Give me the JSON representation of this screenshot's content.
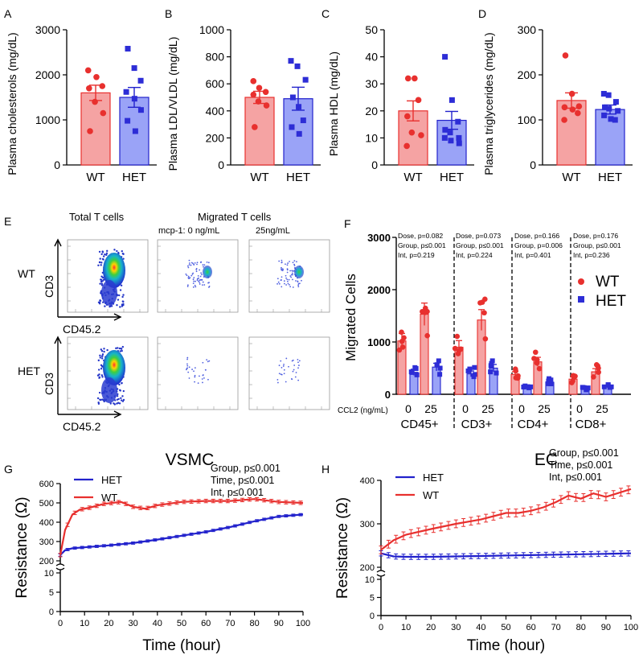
{
  "figure": {
    "colors": {
      "wt": "#e8302e",
      "het": "#2222cc",
      "wt_fill": "#f5a3a3",
      "het_fill": "#9aa3f7",
      "axis": "#000000",
      "dot": "#2d2dd6"
    }
  },
  "chart_data": [
    {
      "panel": "A",
      "type": "bar",
      "ylabel": "Plasma cholesterols (mg/dL)",
      "categories": [
        "WT",
        "HET"
      ],
      "yticks": [
        "0",
        "1000",
        "2000",
        "3000"
      ],
      "ylim": [
        0,
        3000
      ],
      "values": [
        1600,
        1500
      ],
      "sem": [
        170,
        220
      ],
      "points": [
        [
          2100,
          1950,
          1750,
          1700,
          1400,
          1150,
          750
        ],
        [
          2580,
          2150,
          1870,
          1620,
          1470,
          1220,
          980,
          750
        ]
      ]
    },
    {
      "panel": "B",
      "type": "bar",
      "ylabel": "Plasma LDL/VLDL  (mg/dL)",
      "categories": [
        "WT",
        "HET"
      ],
      "yticks": [
        "0",
        "200",
        "400",
        "600",
        "800",
        "1000"
      ],
      "ylim": [
        0,
        1000
      ],
      "values": [
        500,
        490
      ],
      "sem": [
        45,
        85
      ],
      "points": [
        [
          620,
          570,
          540,
          520,
          470,
          440,
          280
        ],
        [
          770,
          730,
          630,
          500,
          430,
          330,
          280,
          230
        ]
      ]
    },
    {
      "panel": "C",
      "type": "bar",
      "ylabel": "Plasma HDL (mg/dL)",
      "categories": [
        "WT",
        "HET"
      ],
      "yticks": [
        "0",
        "10",
        "20",
        "30",
        "40",
        "50"
      ],
      "ylim": [
        0,
        50
      ],
      "values": [
        20,
        16.5
      ],
      "sem": [
        3.7,
        3.3
      ],
      "points": [
        [
          32,
          32,
          24,
          18,
          12,
          11,
          7
        ],
        [
          40,
          24,
          16,
          13,
          12,
          10,
          10,
          9,
          8
        ]
      ]
    },
    {
      "panel": "D",
      "type": "bar",
      "ylabel": "Plasma triglycerides (mg/dL)",
      "categories": [
        "WT",
        "HET"
      ],
      "yticks": [
        "0",
        "100",
        "200",
        "300"
      ],
      "ylim": [
        0,
        300
      ],
      "values": [
        143,
        123
      ],
      "sem": [
        17,
        10
      ],
      "points": [
        [
          243,
          158,
          130,
          128,
          123,
          115,
          100
        ],
        [
          158,
          155,
          140,
          128,
          125,
          120,
          110,
          102,
          100
        ]
      ]
    },
    {
      "panel": "F",
      "type": "bar",
      "ylabel": "Migrated  Cells",
      "xlabel": "CCL2 (ng/mL)",
      "yticks": [
        "0",
        "1000",
        "2000",
        "3000"
      ],
      "ylim": [
        0,
        3000
      ],
      "groups": [
        "CD45+",
        "CD3+",
        "CD4+",
        "CD8+"
      ],
      "doses": [
        "0",
        "25"
      ],
      "legend": [
        "WT",
        "HET"
      ],
      "series": [
        {
          "name": "WT",
          "values": [
            1020,
            1530,
            900,
            1420,
            380,
            620,
            290,
            430
          ]
        },
        {
          "name": "HET",
          "values": [
            420,
            520,
            390,
            500,
            150,
            230,
            110,
            140
          ]
        }
      ],
      "stats": [
        [
          "Dose, p=0.082",
          "Group, p≤0.001",
          "Int, p=0.219"
        ],
        [
          "Dose, p=0.073",
          "Group, p≤0.001",
          "Int, p=0.224"
        ],
        [
          "Dose, p=0.166",
          "Group, p=0.006",
          "Int, p=0.401"
        ],
        [
          "Dose, p=0.176",
          "Group, p≤0.001",
          "Int, p=0.236"
        ]
      ]
    },
    {
      "panel": "G",
      "type": "line",
      "title": "VSMC",
      "xlabel": "Time (hour)",
      "ylabel": "Resistance (Ω)",
      "xticks": [
        "0",
        "10",
        "20",
        "30",
        "40",
        "50",
        "60",
        "70",
        "80",
        "90",
        "100"
      ],
      "yticks_upper": [
        "200",
        "300",
        "400",
        "500",
        "600"
      ],
      "yticks_lower": [
        "0",
        "5",
        "10"
      ],
      "legend": [
        "HET",
        "WT"
      ],
      "stats": [
        "Group, p≤0.001",
        "Time, p≤0.001",
        "Int, p≤0.001"
      ],
      "series": [
        {
          "name": "HET",
          "x": [
            0,
            2,
            5,
            10,
            20,
            30,
            40,
            50,
            60,
            70,
            80,
            90,
            100
          ],
          "y": [
            230,
            255,
            265,
            270,
            280,
            292,
            310,
            330,
            350,
            375,
            405,
            430,
            440
          ]
        },
        {
          "name": "WT",
          "x": [
            0,
            2,
            5,
            8,
            12,
            18,
            25,
            30,
            35,
            40,
            50,
            60,
            70,
            80,
            90,
            100
          ],
          "y": [
            230,
            360,
            440,
            465,
            475,
            495,
            505,
            480,
            470,
            488,
            505,
            510,
            510,
            520,
            505,
            500
          ]
        }
      ]
    },
    {
      "panel": "H",
      "type": "line",
      "title": "EC",
      "xlabel": "Time (hour)",
      "ylabel": "Resistance (Ω)",
      "xticks": [
        "0",
        "10",
        "20",
        "30",
        "40",
        "50",
        "60",
        "70",
        "80",
        "90",
        "100"
      ],
      "yticks_upper": [
        "200",
        "300",
        "400"
      ],
      "yticks_lower": [
        "0",
        "5",
        "10"
      ],
      "legend": [
        "HET",
        "WT"
      ],
      "stats": [
        "Group, p≤0.001",
        "Time, p≤0.001",
        "Int, p≤0.001"
      ],
      "series": [
        {
          "name": "HET",
          "x": [
            0,
            5,
            10,
            20,
            30,
            40,
            50,
            60,
            70,
            80,
            90,
            100
          ],
          "y": [
            232,
            225,
            224,
            224,
            225,
            226,
            227,
            228,
            229,
            230,
            231,
            232
          ]
        },
        {
          "name": "WT",
          "x": [
            0,
            5,
            10,
            20,
            30,
            40,
            50,
            55,
            60,
            65,
            70,
            75,
            80,
            85,
            90,
            100
          ],
          "y": [
            240,
            262,
            275,
            288,
            300,
            310,
            325,
            325,
            330,
            338,
            350,
            365,
            358,
            370,
            362,
            380
          ]
        }
      ]
    }
  ],
  "flow": {
    "label": "E",
    "headers": {
      "total": "Total T cells",
      "migrated": "Migrated T cells",
      "mcp": "mcp-1:  0 ng/mL",
      "dose25": "25ng/mL"
    },
    "rows": [
      "WT",
      "HET"
    ],
    "axis_y": "CD3",
    "axis_x": "CD45.2"
  }
}
